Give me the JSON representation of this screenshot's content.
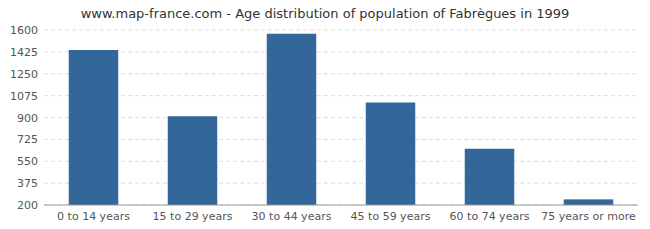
{
  "chart_data": {
    "type": "bar",
    "title": "www.map-france.com - Age distribution of population of Fabrègues in 1999",
    "categories": [
      "0 to 14 years",
      "15 to 29 years",
      "30 to 44 years",
      "45 to 59 years",
      "60 to 74 years",
      "75 years or more"
    ],
    "values": [
      1440,
      910,
      1570,
      1020,
      650,
      245
    ],
    "color": "#336699",
    "ylim": [
      200,
      1600
    ],
    "yticks": [
      200,
      375,
      550,
      725,
      900,
      1075,
      1250,
      1425,
      1600
    ],
    "grid": true
  }
}
